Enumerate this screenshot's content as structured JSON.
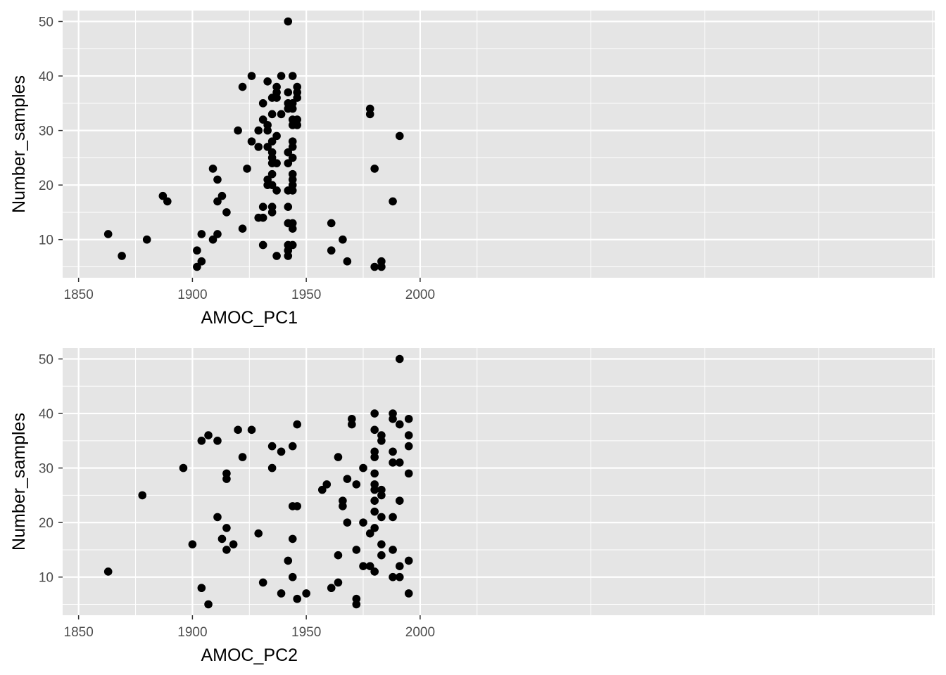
{
  "colors": {
    "panel_background": "#e5e5e5",
    "grid": "#ffffff",
    "point": "#000000",
    "tick_label": "#4d4d4d"
  },
  "chart_data": [
    {
      "type": "scatter",
      "xlabel": "AMOC_PC1",
      "ylabel": "Number_samples",
      "xlim": [
        1843,
        2226
      ],
      "ylim": [
        3,
        52
      ],
      "x_ticks": [
        1850,
        1900,
        1950,
        2000
      ],
      "y_ticks": [
        10,
        20,
        30,
        40,
        50
      ],
      "grid": true,
      "points": [
        [
          1863,
          11
        ],
        [
          1869,
          7
        ],
        [
          1880,
          10
        ],
        [
          1887,
          18
        ],
        [
          1889,
          17
        ],
        [
          1902,
          8
        ],
        [
          1902,
          5
        ],
        [
          1904,
          11
        ],
        [
          1904,
          6
        ],
        [
          1909,
          23
        ],
        [
          1909,
          10
        ],
        [
          1911,
          21
        ],
        [
          1911,
          17
        ],
        [
          1911,
          11
        ],
        [
          1913,
          18
        ],
        [
          1915,
          15
        ],
        [
          1920,
          30
        ],
        [
          1922,
          38
        ],
        [
          1922,
          12
        ],
        [
          1924,
          23
        ],
        [
          1926,
          40
        ],
        [
          1926,
          28
        ],
        [
          1929,
          30
        ],
        [
          1929,
          27
        ],
        [
          1929,
          14
        ],
        [
          1931,
          35
        ],
        [
          1931,
          32
        ],
        [
          1931,
          16
        ],
        [
          1931,
          14
        ],
        [
          1931,
          9
        ],
        [
          1933,
          39
        ],
        [
          1933,
          31
        ],
        [
          1933,
          30
        ],
        [
          1933,
          27
        ],
        [
          1933,
          21
        ],
        [
          1933,
          20
        ],
        [
          1935,
          36
        ],
        [
          1935,
          33
        ],
        [
          1935,
          28
        ],
        [
          1935,
          26
        ],
        [
          1935,
          25
        ],
        [
          1935,
          24
        ],
        [
          1935,
          22
        ],
        [
          1935,
          20
        ],
        [
          1935,
          16
        ],
        [
          1935,
          15
        ],
        [
          1937,
          38
        ],
        [
          1937,
          37
        ],
        [
          1937,
          36
        ],
        [
          1937,
          29
        ],
        [
          1937,
          24
        ],
        [
          1937,
          19
        ],
        [
          1937,
          7
        ],
        [
          1939,
          40
        ],
        [
          1939,
          33
        ],
        [
          1942,
          50
        ],
        [
          1942,
          37
        ],
        [
          1942,
          35
        ],
        [
          1942,
          34
        ],
        [
          1942,
          26
        ],
        [
          1942,
          24
        ],
        [
          1942,
          19
        ],
        [
          1942,
          16
        ],
        [
          1942,
          13
        ],
        [
          1942,
          9
        ],
        [
          1942,
          8
        ],
        [
          1942,
          7
        ],
        [
          1944,
          40
        ],
        [
          1944,
          35
        ],
        [
          1944,
          34
        ],
        [
          1944,
          32
        ],
        [
          1944,
          31
        ],
        [
          1944,
          28
        ],
        [
          1944,
          27
        ],
        [
          1944,
          25
        ],
        [
          1944,
          22
        ],
        [
          1944,
          21
        ],
        [
          1944,
          20
        ],
        [
          1944,
          19
        ],
        [
          1944,
          13
        ],
        [
          1944,
          12
        ],
        [
          1944,
          9
        ],
        [
          1946,
          38
        ],
        [
          1946,
          37
        ],
        [
          1946,
          36
        ],
        [
          1946,
          32
        ],
        [
          1946,
          31
        ],
        [
          1961,
          13
        ],
        [
          1961,
          8
        ],
        [
          1966,
          10
        ],
        [
          1968,
          6
        ],
        [
          1978,
          34
        ],
        [
          1978,
          33
        ],
        [
          1980,
          23
        ],
        [
          1980,
          5
        ],
        [
          1983,
          6
        ],
        [
          1983,
          5
        ],
        [
          1988,
          17
        ],
        [
          1991,
          29
        ]
      ]
    },
    {
      "type": "scatter",
      "xlabel": "AMOC_PC2",
      "ylabel": "Number_samples",
      "xlim": [
        1843,
        2226
      ],
      "ylim": [
        3,
        52
      ],
      "x_ticks": [
        1850,
        1900,
        1950,
        2000
      ],
      "y_ticks": [
        10,
        20,
        30,
        40,
        50
      ],
      "grid": true,
      "points": [
        [
          1863,
          11
        ],
        [
          1878,
          25
        ],
        [
          1896,
          30
        ],
        [
          1900,
          16
        ],
        [
          1904,
          35
        ],
        [
          1904,
          8
        ],
        [
          1907,
          36
        ],
        [
          1907,
          5
        ],
        [
          1911,
          35
        ],
        [
          1911,
          21
        ],
        [
          1913,
          17
        ],
        [
          1915,
          29
        ],
        [
          1915,
          28
        ],
        [
          1915,
          19
        ],
        [
          1915,
          15
        ],
        [
          1918,
          16
        ],
        [
          1920,
          37
        ],
        [
          1922,
          32
        ],
        [
          1926,
          37
        ],
        [
          1929,
          18
        ],
        [
          1931,
          9
        ],
        [
          1935,
          34
        ],
        [
          1935,
          30
        ],
        [
          1939,
          33
        ],
        [
          1939,
          7
        ],
        [
          1942,
          13
        ],
        [
          1944,
          34
        ],
        [
          1944,
          23
        ],
        [
          1944,
          17
        ],
        [
          1944,
          10
        ],
        [
          1946,
          38
        ],
        [
          1946,
          23
        ],
        [
          1946,
          6
        ],
        [
          1950,
          7
        ],
        [
          1957,
          26
        ],
        [
          1959,
          27
        ],
        [
          1961,
          8
        ],
        [
          1964,
          32
        ],
        [
          1964,
          14
        ],
        [
          1964,
          9
        ],
        [
          1966,
          24
        ],
        [
          1966,
          23
        ],
        [
          1968,
          28
        ],
        [
          1968,
          20
        ],
        [
          1970,
          39
        ],
        [
          1970,
          38
        ],
        [
          1972,
          27
        ],
        [
          1972,
          15
        ],
        [
          1972,
          6
        ],
        [
          1972,
          5
        ],
        [
          1975,
          30
        ],
        [
          1975,
          20
        ],
        [
          1975,
          12
        ],
        [
          1978,
          18
        ],
        [
          1978,
          12
        ],
        [
          1980,
          40
        ],
        [
          1980,
          37
        ],
        [
          1980,
          33
        ],
        [
          1980,
          32
        ],
        [
          1980,
          29
        ],
        [
          1980,
          27
        ],
        [
          1980,
          26
        ],
        [
          1980,
          24
        ],
        [
          1980,
          22
        ],
        [
          1980,
          19
        ],
        [
          1980,
          11
        ],
        [
          1983,
          36
        ],
        [
          1983,
          35
        ],
        [
          1983,
          26
        ],
        [
          1983,
          25
        ],
        [
          1983,
          21
        ],
        [
          1983,
          16
        ],
        [
          1983,
          14
        ],
        [
          1988,
          40
        ],
        [
          1988,
          39
        ],
        [
          1988,
          33
        ],
        [
          1988,
          31
        ],
        [
          1988,
          21
        ],
        [
          1988,
          15
        ],
        [
          1988,
          10
        ],
        [
          1991,
          50
        ],
        [
          1991,
          38
        ],
        [
          1991,
          31
        ],
        [
          1991,
          24
        ],
        [
          1991,
          12
        ],
        [
          1991,
          10
        ],
        [
          1995,
          39
        ],
        [
          1995,
          36
        ],
        [
          1995,
          34
        ],
        [
          1995,
          29
        ],
        [
          1995,
          13
        ],
        [
          1995,
          7
        ]
      ]
    }
  ]
}
